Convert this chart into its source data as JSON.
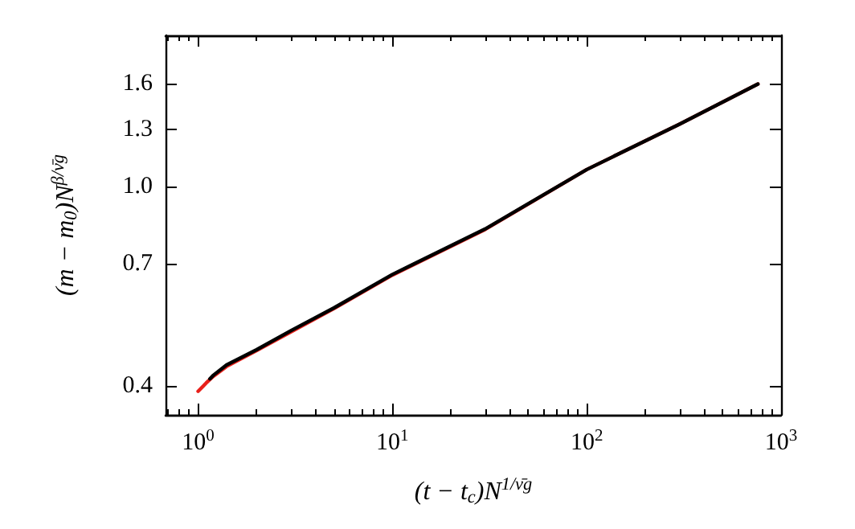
{
  "chart_data": {
    "type": "line",
    "xlabel": "(t − t$_{c}$)N$^{1/ν̄g}$",
    "ylabel": "(m − m$_{0}$)N$^{β/ν̄g}$",
    "log": "xy",
    "grid": false,
    "marker": "none",
    "line_style": "solid",
    "xlim": [
      0.68,
      1000
    ],
    "xticks": [
      {
        "value": 1,
        "label": "10$^{0}$"
      },
      {
        "value": 10,
        "label": "10$^{1}$"
      },
      {
        "value": 100,
        "label": "10$^{2}$"
      },
      {
        "value": 1000,
        "label": "10$^{3}$"
      }
    ],
    "ylim": [
      0.35,
      2
    ],
    "yticks": [
      0.4,
      0.7,
      {
        "value": 1,
        "label": "1.0"
      },
      1.3,
      1.6
    ],
    "series": [
      {
        "color": "#e8201a",
        "x": [
          1,
          1.1,
          1.2,
          1.4,
          2,
          5,
          10,
          30,
          100,
          300,
          760
        ],
        "values": [
          0.39,
          0.405,
          0.418,
          0.437,
          0.47,
          0.57,
          0.665,
          0.82,
          1.08,
          1.33,
          1.6
        ]
      },
      {
        "color": "#000000",
        "x": [
          1.15,
          1.2,
          1.4,
          2,
          3,
          5,
          10,
          30,
          100,
          300,
          760
        ],
        "values": [
          0.413,
          0.42,
          0.44,
          0.472,
          0.515,
          0.572,
          0.667,
          0.822,
          1.08,
          1.33,
          1.6
        ]
      }
    ]
  }
}
